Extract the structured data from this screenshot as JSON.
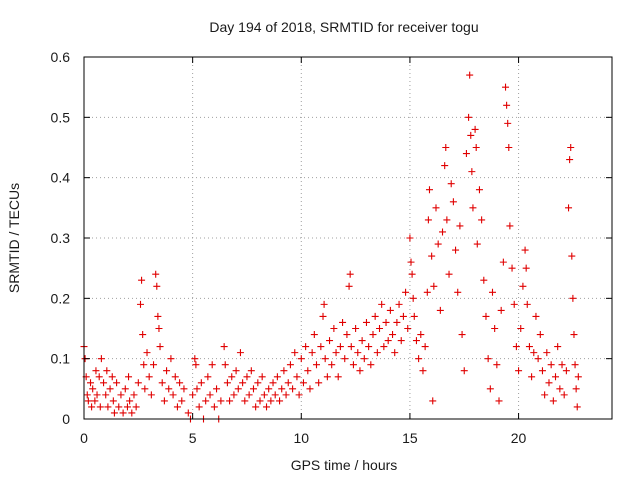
{
  "chart_data": {
    "type": "scatter",
    "title": "Day 194 of 2018, SRMTID for receiver togu",
    "xlabel": "GPS time / hours",
    "ylabel": "SRMTID / TECUs",
    "xlim": [
      0,
      24.3
    ],
    "ylim": [
      0,
      0.6
    ],
    "x_ticks": [
      0,
      5,
      10,
      15,
      20
    ],
    "x_tick_labels": [
      "0",
      "5",
      "10",
      "15",
      "20"
    ],
    "y_ticks": [
      0,
      0.1,
      0.2,
      0.3,
      0.4,
      0.5,
      0.6
    ],
    "y_tick_labels": [
      "0",
      "0.1",
      "0.2",
      "0.3",
      "0.4",
      "0.5",
      "0.6"
    ],
    "grid": true,
    "marker": "+",
    "color": "#e00000",
    "series": [
      {
        "name": "SRMTID",
        "points": [
          [
            0.0,
            0.12
          ],
          [
            0.05,
            0.1
          ],
          [
            0.1,
            0.07
          ],
          [
            0.15,
            0.04
          ],
          [
            0.2,
            0.03
          ],
          [
            0.3,
            0.06
          ],
          [
            0.35,
            0.02
          ],
          [
            0.4,
            0.05
          ],
          [
            0.5,
            0.03
          ],
          [
            0.55,
            0.08
          ],
          [
            0.6,
            0.04
          ],
          [
            0.7,
            0.07
          ],
          [
            0.75,
            0.02
          ],
          [
            0.8,
            0.1
          ],
          [
            0.9,
            0.06
          ],
          [
            1.0,
            0.04
          ],
          [
            1.05,
            0.08
          ],
          [
            1.1,
            0.02
          ],
          [
            1.2,
            0.05
          ],
          [
            1.3,
            0.07
          ],
          [
            1.35,
            0.03
          ],
          [
            1.4,
            0.01
          ],
          [
            1.5,
            0.06
          ],
          [
            1.6,
            0.02
          ],
          [
            1.7,
            0.04
          ],
          [
            1.8,
            0.01
          ],
          [
            1.9,
            0.05
          ],
          [
            2.0,
            0.02
          ],
          [
            2.05,
            0.07
          ],
          [
            2.1,
            0.03
          ],
          [
            2.2,
            0.01
          ],
          [
            2.3,
            0.04
          ],
          [
            2.4,
            0.02
          ],
          [
            2.5,
            0.06
          ],
          [
            2.6,
            0.19
          ],
          [
            2.65,
            0.23
          ],
          [
            2.7,
            0.14
          ],
          [
            2.75,
            0.09
          ],
          [
            2.8,
            0.05
          ],
          [
            2.9,
            0.11
          ],
          [
            3.0,
            0.07
          ],
          [
            3.1,
            0.04
          ],
          [
            3.2,
            0.09
          ],
          [
            3.3,
            0.24
          ],
          [
            3.35,
            0.22
          ],
          [
            3.4,
            0.17
          ],
          [
            3.45,
            0.15
          ],
          [
            3.5,
            0.12
          ],
          [
            3.6,
            0.06
          ],
          [
            3.7,
            0.03
          ],
          [
            3.8,
            0.08
          ],
          [
            3.9,
            0.05
          ],
          [
            4.0,
            0.1
          ],
          [
            4.1,
            0.04
          ],
          [
            4.2,
            0.07
          ],
          [
            4.3,
            0.02
          ],
          [
            4.4,
            0.06
          ],
          [
            4.5,
            0.03
          ],
          [
            4.6,
            0.05
          ],
          [
            4.8,
            0.01
          ],
          [
            4.9,
            0.0
          ],
          [
            5.0,
            0.04
          ],
          [
            5.1,
            0.1
          ],
          [
            5.15,
            0.09
          ],
          [
            5.2,
            0.05
          ],
          [
            5.3,
            0.02
          ],
          [
            5.4,
            0.06
          ],
          [
            5.5,
            0.0
          ],
          [
            5.6,
            0.03
          ],
          [
            5.7,
            0.07
          ],
          [
            5.8,
            0.04
          ],
          [
            5.9,
            0.09
          ],
          [
            6.0,
            0.02
          ],
          [
            6.1,
            0.05
          ],
          [
            6.2,
            0.0
          ],
          [
            6.3,
            0.03
          ],
          [
            6.45,
            0.12
          ],
          [
            6.5,
            0.09
          ],
          [
            6.6,
            0.06
          ],
          [
            6.7,
            0.03
          ],
          [
            6.8,
            0.07
          ],
          [
            6.9,
            0.04
          ],
          [
            7.0,
            0.08
          ],
          [
            7.1,
            0.05
          ],
          [
            7.2,
            0.11
          ],
          [
            7.3,
            0.06
          ],
          [
            7.4,
            0.03
          ],
          [
            7.5,
            0.07
          ],
          [
            7.6,
            0.04
          ],
          [
            7.7,
            0.08
          ],
          [
            7.8,
            0.05
          ],
          [
            7.9,
            0.02
          ],
          [
            8.0,
            0.06
          ],
          [
            8.1,
            0.03
          ],
          [
            8.2,
            0.07
          ],
          [
            8.3,
            0.04
          ],
          [
            8.4,
            0.02
          ],
          [
            8.5,
            0.05
          ],
          [
            8.6,
            0.03
          ],
          [
            8.7,
            0.06
          ],
          [
            8.8,
            0.04
          ],
          [
            8.9,
            0.07
          ],
          [
            9.0,
            0.03
          ],
          [
            9.1,
            0.05
          ],
          [
            9.2,
            0.08
          ],
          [
            9.3,
            0.04
          ],
          [
            9.4,
            0.06
          ],
          [
            9.5,
            0.09
          ],
          [
            9.6,
            0.05
          ],
          [
            9.7,
            0.11
          ],
          [
            9.8,
            0.07
          ],
          [
            9.9,
            0.04
          ],
          [
            10.0,
            0.1
          ],
          [
            10.1,
            0.06
          ],
          [
            10.2,
            0.12
          ],
          [
            10.3,
            0.08
          ],
          [
            10.4,
            0.05
          ],
          [
            10.5,
            0.11
          ],
          [
            10.6,
            0.14
          ],
          [
            10.7,
            0.09
          ],
          [
            10.8,
            0.06
          ],
          [
            10.9,
            0.12
          ],
          [
            11.0,
            0.17
          ],
          [
            11.05,
            0.19
          ],
          [
            11.1,
            0.1
          ],
          [
            11.2,
            0.07
          ],
          [
            11.3,
            0.13
          ],
          [
            11.4,
            0.09
          ],
          [
            11.5,
            0.15
          ],
          [
            11.6,
            0.11
          ],
          [
            11.7,
            0.07
          ],
          [
            11.8,
            0.12
          ],
          [
            11.9,
            0.16
          ],
          [
            12.0,
            0.1
          ],
          [
            12.1,
            0.14
          ],
          [
            12.2,
            0.22
          ],
          [
            12.25,
            0.24
          ],
          [
            12.3,
            0.12
          ],
          [
            12.4,
            0.09
          ],
          [
            12.5,
            0.15
          ],
          [
            12.6,
            0.11
          ],
          [
            12.7,
            0.08
          ],
          [
            12.8,
            0.13
          ],
          [
            12.9,
            0.1
          ],
          [
            13.0,
            0.16
          ],
          [
            13.1,
            0.12
          ],
          [
            13.2,
            0.09
          ],
          [
            13.3,
            0.14
          ],
          [
            13.4,
            0.17
          ],
          [
            13.5,
            0.11
          ],
          [
            13.6,
            0.15
          ],
          [
            13.7,
            0.19
          ],
          [
            13.8,
            0.12
          ],
          [
            13.9,
            0.16
          ],
          [
            14.0,
            0.13
          ],
          [
            14.1,
            0.18
          ],
          [
            14.2,
            0.14
          ],
          [
            14.3,
            0.11
          ],
          [
            14.4,
            0.16
          ],
          [
            14.5,
            0.19
          ],
          [
            14.6,
            0.13
          ],
          [
            14.7,
            0.17
          ],
          [
            14.8,
            0.21
          ],
          [
            14.9,
            0.15
          ],
          [
            15.0,
            0.3
          ],
          [
            15.05,
            0.26
          ],
          [
            15.1,
            0.24
          ],
          [
            15.15,
            0.2
          ],
          [
            15.2,
            0.17
          ],
          [
            15.3,
            0.13
          ],
          [
            15.4,
            0.1
          ],
          [
            15.5,
            0.14
          ],
          [
            15.6,
            0.08
          ],
          [
            15.7,
            0.12
          ],
          [
            15.8,
            0.21
          ],
          [
            15.85,
            0.33
          ],
          [
            15.9,
            0.38
          ],
          [
            16.0,
            0.27
          ],
          [
            16.05,
            0.03
          ],
          [
            16.1,
            0.22
          ],
          [
            16.2,
            0.35
          ],
          [
            16.3,
            0.29
          ],
          [
            16.4,
            0.18
          ],
          [
            16.5,
            0.31
          ],
          [
            16.6,
            0.42
          ],
          [
            16.65,
            0.45
          ],
          [
            16.7,
            0.33
          ],
          [
            16.8,
            0.24
          ],
          [
            16.9,
            0.39
          ],
          [
            17.0,
            0.36
          ],
          [
            17.1,
            0.28
          ],
          [
            17.2,
            0.21
          ],
          [
            17.3,
            0.32
          ],
          [
            17.4,
            0.14
          ],
          [
            17.5,
            0.08
          ],
          [
            17.6,
            0.44
          ],
          [
            17.7,
            0.5
          ],
          [
            17.75,
            0.57
          ],
          [
            17.8,
            0.47
          ],
          [
            17.85,
            0.41
          ],
          [
            17.9,
            0.35
          ],
          [
            18.0,
            0.48
          ],
          [
            18.05,
            0.45
          ],
          [
            18.1,
            0.29
          ],
          [
            18.2,
            0.38
          ],
          [
            18.3,
            0.33
          ],
          [
            18.4,
            0.23
          ],
          [
            18.5,
            0.17
          ],
          [
            18.6,
            0.1
          ],
          [
            18.7,
            0.05
          ],
          [
            18.8,
            0.21
          ],
          [
            18.9,
            0.15
          ],
          [
            19.0,
            0.09
          ],
          [
            19.1,
            0.03
          ],
          [
            19.2,
            0.18
          ],
          [
            19.3,
            0.26
          ],
          [
            19.4,
            0.55
          ],
          [
            19.45,
            0.52
          ],
          [
            19.5,
            0.49
          ],
          [
            19.55,
            0.45
          ],
          [
            19.6,
            0.32
          ],
          [
            19.7,
            0.25
          ],
          [
            19.8,
            0.19
          ],
          [
            19.9,
            0.12
          ],
          [
            20.0,
            0.08
          ],
          [
            20.1,
            0.15
          ],
          [
            20.2,
            0.22
          ],
          [
            20.3,
            0.28
          ],
          [
            20.35,
            0.25
          ],
          [
            20.4,
            0.19
          ],
          [
            20.5,
            0.12
          ],
          [
            20.6,
            0.07
          ],
          [
            20.7,
            0.11
          ],
          [
            20.8,
            0.17
          ],
          [
            20.9,
            0.1
          ],
          [
            21.0,
            0.14
          ],
          [
            21.1,
            0.08
          ],
          [
            21.2,
            0.04
          ],
          [
            21.3,
            0.11
          ],
          [
            21.4,
            0.06
          ],
          [
            21.5,
            0.09
          ],
          [
            21.6,
            0.03
          ],
          [
            21.7,
            0.07
          ],
          [
            21.8,
            0.12
          ],
          [
            21.9,
            0.05
          ],
          [
            22.0,
            0.09
          ],
          [
            22.1,
            0.04
          ],
          [
            22.2,
            0.08
          ],
          [
            22.3,
            0.35
          ],
          [
            22.35,
            0.43
          ],
          [
            22.4,
            0.45
          ],
          [
            22.45,
            0.27
          ],
          [
            22.5,
            0.2
          ],
          [
            22.55,
            0.14
          ],
          [
            22.6,
            0.09
          ],
          [
            22.65,
            0.05
          ],
          [
            22.7,
            0.02
          ],
          [
            22.75,
            0.07
          ]
        ]
      }
    ]
  }
}
